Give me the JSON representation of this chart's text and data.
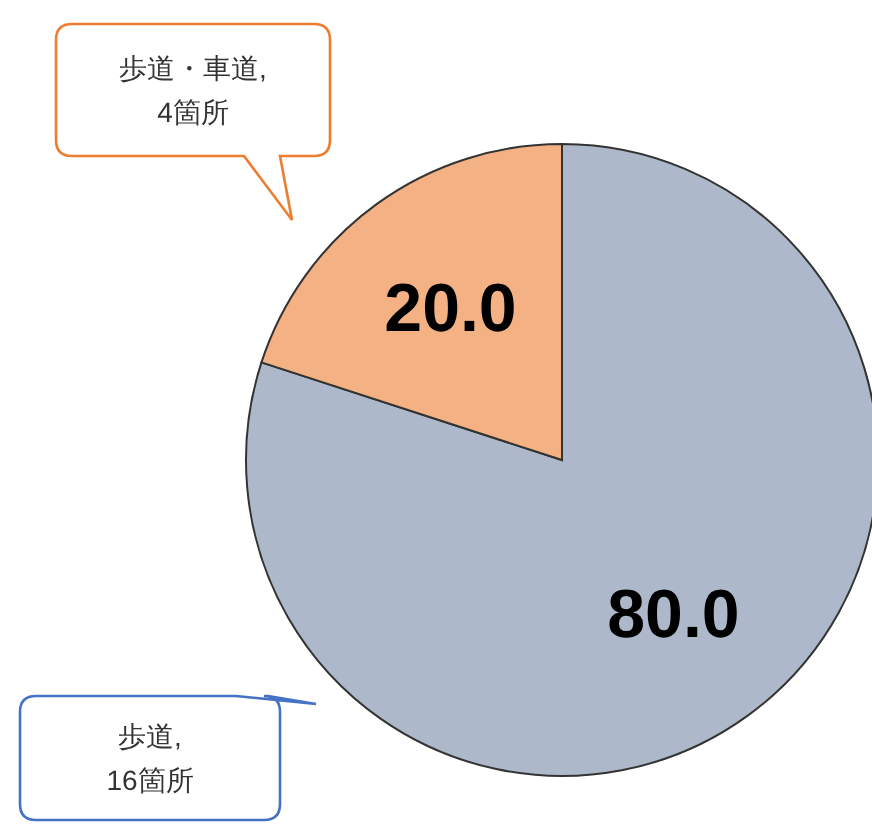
{
  "chart_data": {
    "type": "pie",
    "categories": [
      "歩道, 16箇所",
      "歩道・車道, 4箇所"
    ],
    "values": [
      80,
      20
    ],
    "colors": [
      "#adb9ca",
      "#f4b183"
    ],
    "value_labels": [
      "80.0",
      "20.0"
    ]
  }
}
